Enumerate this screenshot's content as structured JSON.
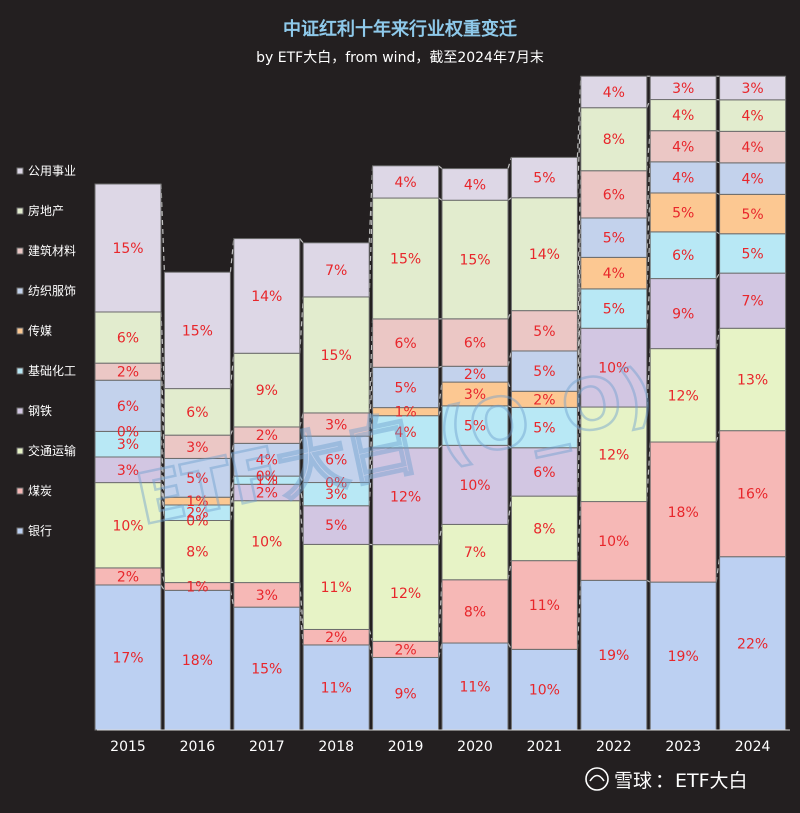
{
  "chart_data": {
    "type": "bar",
    "stacked": true,
    "title": "中证红利十年来行业权重变迁",
    "subtitle": "by ETF大白，from wind，截至2024年7月末",
    "categories": [
      "2015",
      "2016",
      "2017",
      "2018",
      "2019",
      "2020",
      "2021",
      "2022",
      "2023",
      "2024"
    ],
    "ylim": [
      0,
      100
    ],
    "legend_position": "left",
    "series": [
      {
        "name": "银行",
        "color": "#bcd0f2",
        "values": [
          17,
          18,
          15,
          11,
          9,
          11,
          10,
          19,
          19,
          22
        ]
      },
      {
        "name": "煤炭",
        "color": "#f6b8b6",
        "values": [
          2,
          1,
          3,
          2,
          2,
          8,
          11,
          10,
          18,
          16
        ]
      },
      {
        "name": "交通运输",
        "color": "#e7f3c6",
        "values": [
          10,
          8,
          10,
          11,
          12,
          7,
          8,
          12,
          12,
          13
        ]
      },
      {
        "name": "钢铁",
        "color": "#d2c6e2",
        "values": [
          3,
          0,
          2,
          5,
          12,
          10,
          6,
          10,
          9,
          7
        ]
      },
      {
        "name": "基础化工",
        "color": "#b8e8f5",
        "values": [
          3,
          2,
          1,
          3,
          4,
          5,
          5,
          5,
          6,
          5
        ]
      },
      {
        "name": "传媒",
        "color": "#fcc892",
        "values": [
          0,
          1,
          0,
          0,
          1,
          3,
          2,
          4,
          5,
          5
        ]
      },
      {
        "name": "纺织服饰",
        "color": "#c3d2ec",
        "values": [
          6,
          5,
          4,
          6,
          5,
          2,
          5,
          5,
          4,
          4
        ]
      },
      {
        "name": "建筑材料",
        "color": "#ebc7c5",
        "values": [
          2,
          3,
          2,
          3,
          6,
          6,
          5,
          6,
          4,
          4
        ]
      },
      {
        "name": "房地产",
        "color": "#e2ecce",
        "values": [
          6,
          6,
          9,
          15,
          15,
          15,
          14,
          8,
          4,
          4
        ]
      },
      {
        "name": "公用事业",
        "color": "#ddd7e6",
        "values": [
          15,
          15,
          14,
          7,
          4,
          4,
          5,
          4,
          3,
          3
        ]
      }
    ],
    "segment_labels": [
      [
        "17%",
        "2%",
        "10%",
        "3%",
        "3%",
        "0%",
        "6%",
        "2%",
        "6%",
        "15%"
      ],
      [
        "18%",
        "1%",
        "8%",
        "0%",
        "2%",
        "1%",
        "5%",
        "3%",
        "6%",
        "15%"
      ],
      [
        "15%",
        "3%",
        "10%",
        "2%",
        "1%",
        "0%",
        "4%",
        "2%",
        "9%",
        "14%"
      ],
      [
        "11%",
        "2%",
        "11%",
        "5%",
        "3%",
        "0%",
        "6%",
        "3%",
        "15%",
        "7%"
      ],
      [
        "9%",
        "2%",
        "12%",
        "12%",
        "4%",
        "1%",
        "5%",
        "6%",
        "15%",
        "4%"
      ],
      [
        "11%",
        "8%",
        "7%",
        "10%",
        "5%",
        "3%",
        "2%",
        "6%",
        "15%",
        "4%"
      ],
      [
        "10%",
        "11%",
        "8%",
        "6%",
        "5%",
        "2%",
        "5%",
        "5%",
        "14%",
        "5%"
      ],
      [
        "19%",
        "10%",
        "12%",
        "10%",
        "5%",
        "4%",
        "5%",
        "6%",
        "8%",
        "4%"
      ],
      [
        "19%",
        "18%",
        "12%",
        "9%",
        "6%",
        "5%",
        "4%",
        "4%",
        "4%",
        "3%"
      ],
      [
        "22%",
        "16%",
        "13%",
        "7%",
        "5%",
        "5%",
        "4%",
        "4%",
        "4%",
        "3%"
      ]
    ],
    "bar_tops": [
      78.0,
      65.4,
      70.2,
      69.6,
      80.6,
      80.2,
      81.8,
      93.4,
      93.4,
      93.4
    ]
  },
  "watermark": "ETF大白 (O_O)",
  "footer": {
    "brand": "雪球",
    "separator": "：",
    "author": "ETF大白"
  }
}
